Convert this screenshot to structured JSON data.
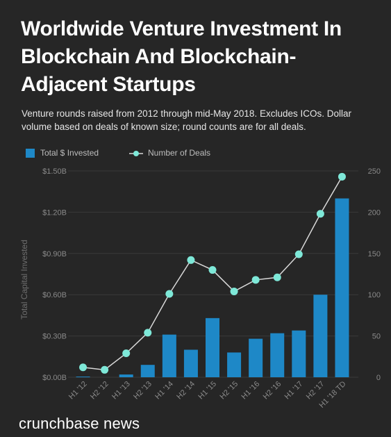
{
  "title": "Worldwide Venture Investment In Blockchain And Blockchain-Adjacent Startups",
  "subtitle": "Venture rounds raised from 2012 through mid-May 2018. Excludes ICOs. Dollar volume based on deals of known size; round counts are for all deals.",
  "brand": "crunchbase news",
  "colors": {
    "bar": "#1e88c7",
    "line": "#d9d9d9",
    "marker": "#7ee8d8",
    "background": "#262626",
    "axis_text": "#8a8a8a",
    "grid": "#3a3a3a"
  },
  "chart_data": {
    "type": "bar",
    "categories": [
      "H1 '12",
      "H2 '12",
      "H1 '13",
      "H2 '13",
      "H1 '14",
      "H2 '14",
      "H1 '15",
      "H2 '15",
      "H1 '16",
      "H2 '16",
      "H1 '17",
      "H2 '17",
      "H1 '18 TD"
    ],
    "series": [
      {
        "name": "Total $ Invested",
        "type": "bar",
        "axis": "left",
        "values": [
          0.005,
          0.0,
          0.02,
          0.09,
          0.31,
          0.2,
          0.43,
          0.18,
          0.28,
          0.32,
          0.34,
          0.6,
          1.3
        ]
      },
      {
        "name": "Number of Deals",
        "type": "line",
        "axis": "right",
        "values": [
          12,
          9,
          29,
          54,
          101,
          142,
          130,
          104,
          118,
          121,
          149,
          198,
          243
        ]
      }
    ],
    "ylabel": "Total Capital Invested",
    "xlabel": "",
    "ylim": [
      0,
      1.5
    ],
    "ylim_right": [
      0,
      250
    ],
    "yticks_left": [
      "$0.00B",
      "$0.30B",
      "$0.60B",
      "$0.90B",
      "$1.20B",
      "$1.50B"
    ],
    "yticks_right": [
      "0",
      "50",
      "100",
      "150",
      "200",
      "250"
    ],
    "legend_placement": "top-left",
    "grid": true
  }
}
